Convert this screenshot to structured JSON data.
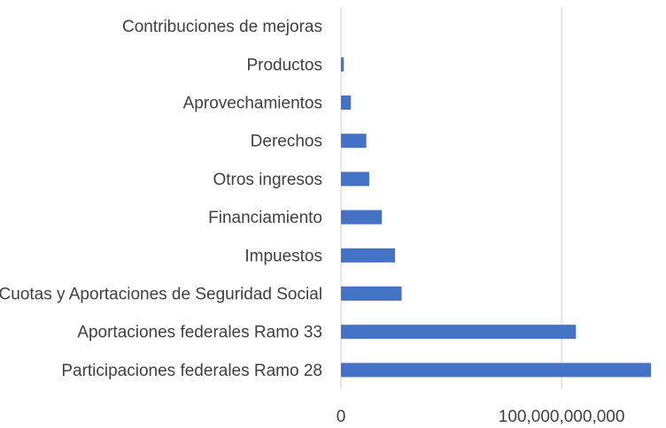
{
  "chart_data": {
    "type": "bar",
    "orientation": "horizontal",
    "title": "",
    "xlabel": "",
    "ylabel": "",
    "categories": [
      "Contribuciones de mejoras",
      "Productos",
      "Aprovechamientos",
      "Derechos",
      "Otros ingresos",
      "Financiamiento",
      "Impuestos",
      "Cuotas y Aportaciones de Seguridad Social",
      "Aportaciones federales Ramo 33",
      "Participaciones federales Ramo 28"
    ],
    "values": [
      0,
      1300000000,
      4500000000,
      11500000000,
      12800000000,
      18500000000,
      24500000000,
      27500000000,
      106500000000,
      140500000000
    ],
    "xlim": [
      0,
      140500000000
    ],
    "x_ticks": [
      0,
      100000000000
    ],
    "x_tick_labels": [
      "0",
      "100,000,000,000"
    ],
    "grid": true,
    "legend": "none",
    "bar_color": "#4472c4",
    "grid_color": "#d9d9d9"
  }
}
